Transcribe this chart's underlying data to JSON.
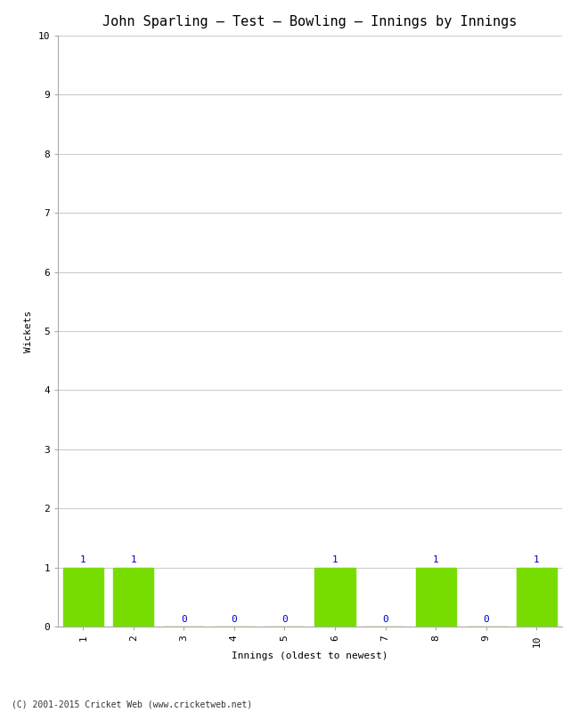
{
  "title": "John Sparling – Test – Bowling – Innings by Innings",
  "xlabel": "Innings (oldest to newest)",
  "ylabel": "Wickets",
  "innings": [
    1,
    2,
    3,
    4,
    5,
    6,
    7,
    8,
    9,
    10
  ],
  "wickets": [
    1,
    1,
    0,
    0,
    0,
    1,
    0,
    1,
    0,
    1
  ],
  "bar_color": "#77dd00",
  "annotation_color": "#0000cc",
  "ylim": [
    0,
    10
  ],
  "yticks": [
    0,
    1,
    2,
    3,
    4,
    5,
    6,
    7,
    8,
    9,
    10
  ],
  "background_color": "#ffffff",
  "grid_color": "#cccccc",
  "title_fontsize": 11,
  "label_fontsize": 8,
  "tick_fontsize": 8,
  "annotation_fontsize": 8,
  "footer": "(C) 2001-2015 Cricket Web (www.cricketweb.net)",
  "footer_fontsize": 7
}
